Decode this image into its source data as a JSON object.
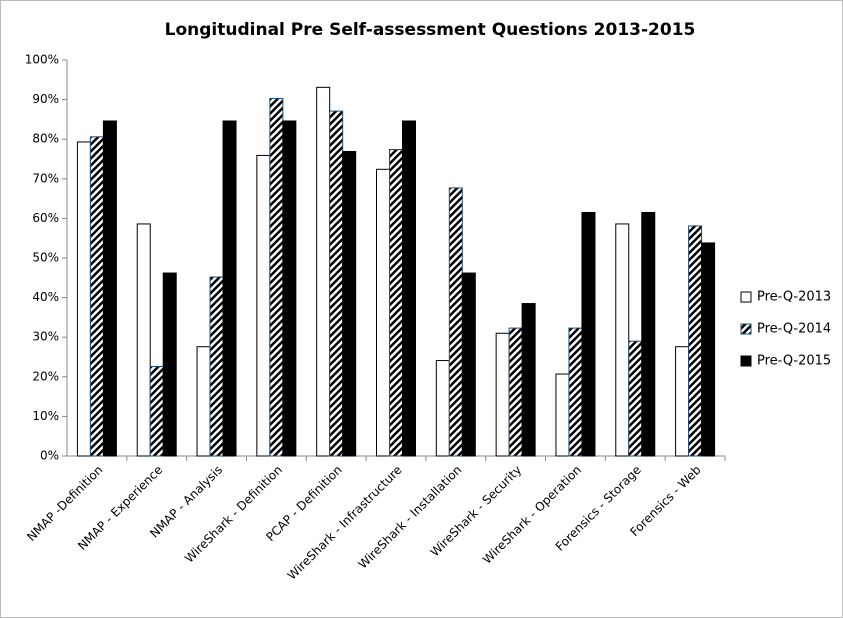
{
  "chart_data": {
    "type": "bar",
    "title": "Longitudinal Pre Self-assessment Questions 2013-2015",
    "categories": [
      "NMAP -Definition",
      "NMAP - Experience",
      "NMAP - Analysis",
      "WireShark - Definition",
      "PCAP - Definition",
      "WireShark - Infrastructure",
      "WireShark - Installation",
      "WireShark - Security",
      "WireShark - Operation",
      "Forensics - Storage",
      "Forensics - Web"
    ],
    "series": [
      {
        "name": "Pre-Q-2013",
        "color": "#ffffff",
        "values": [
          79.3,
          58.6,
          27.6,
          75.9,
          93.1,
          72.4,
          24.1,
          31.0,
          20.7,
          58.6,
          27.6
        ]
      },
      {
        "name": "Pre-Q-2014",
        "color": "#1f4e79",
        "hatch": true,
        "values": [
          80.6,
          22.6,
          45.2,
          90.3,
          87.1,
          77.4,
          67.7,
          32.3,
          32.3,
          29.0,
          58.1
        ]
      },
      {
        "name": "Pre-Q-2015",
        "color": "#000000",
        "values": [
          84.6,
          46.2,
          84.6,
          84.6,
          76.9,
          84.6,
          46.2,
          38.5,
          61.5,
          61.5,
          53.8
        ]
      }
    ],
    "ylim": [
      0,
      100
    ],
    "yticks": [
      {
        "value": 0,
        "label": "0%"
      },
      {
        "value": 10,
        "label": "10%"
      },
      {
        "value": 20,
        "label": "20%"
      },
      {
        "value": 30,
        "label": "30%"
      },
      {
        "value": 40,
        "label": "40%"
      },
      {
        "value": 50,
        "label": "50%"
      },
      {
        "value": 60,
        "label": "60%"
      },
      {
        "value": 70,
        "label": "70%"
      },
      {
        "value": 80,
        "label": "80%"
      },
      {
        "value": 90,
        "label": "90%"
      },
      {
        "value": 100,
        "label": "100%"
      }
    ],
    "grid": false,
    "legend": "right"
  }
}
